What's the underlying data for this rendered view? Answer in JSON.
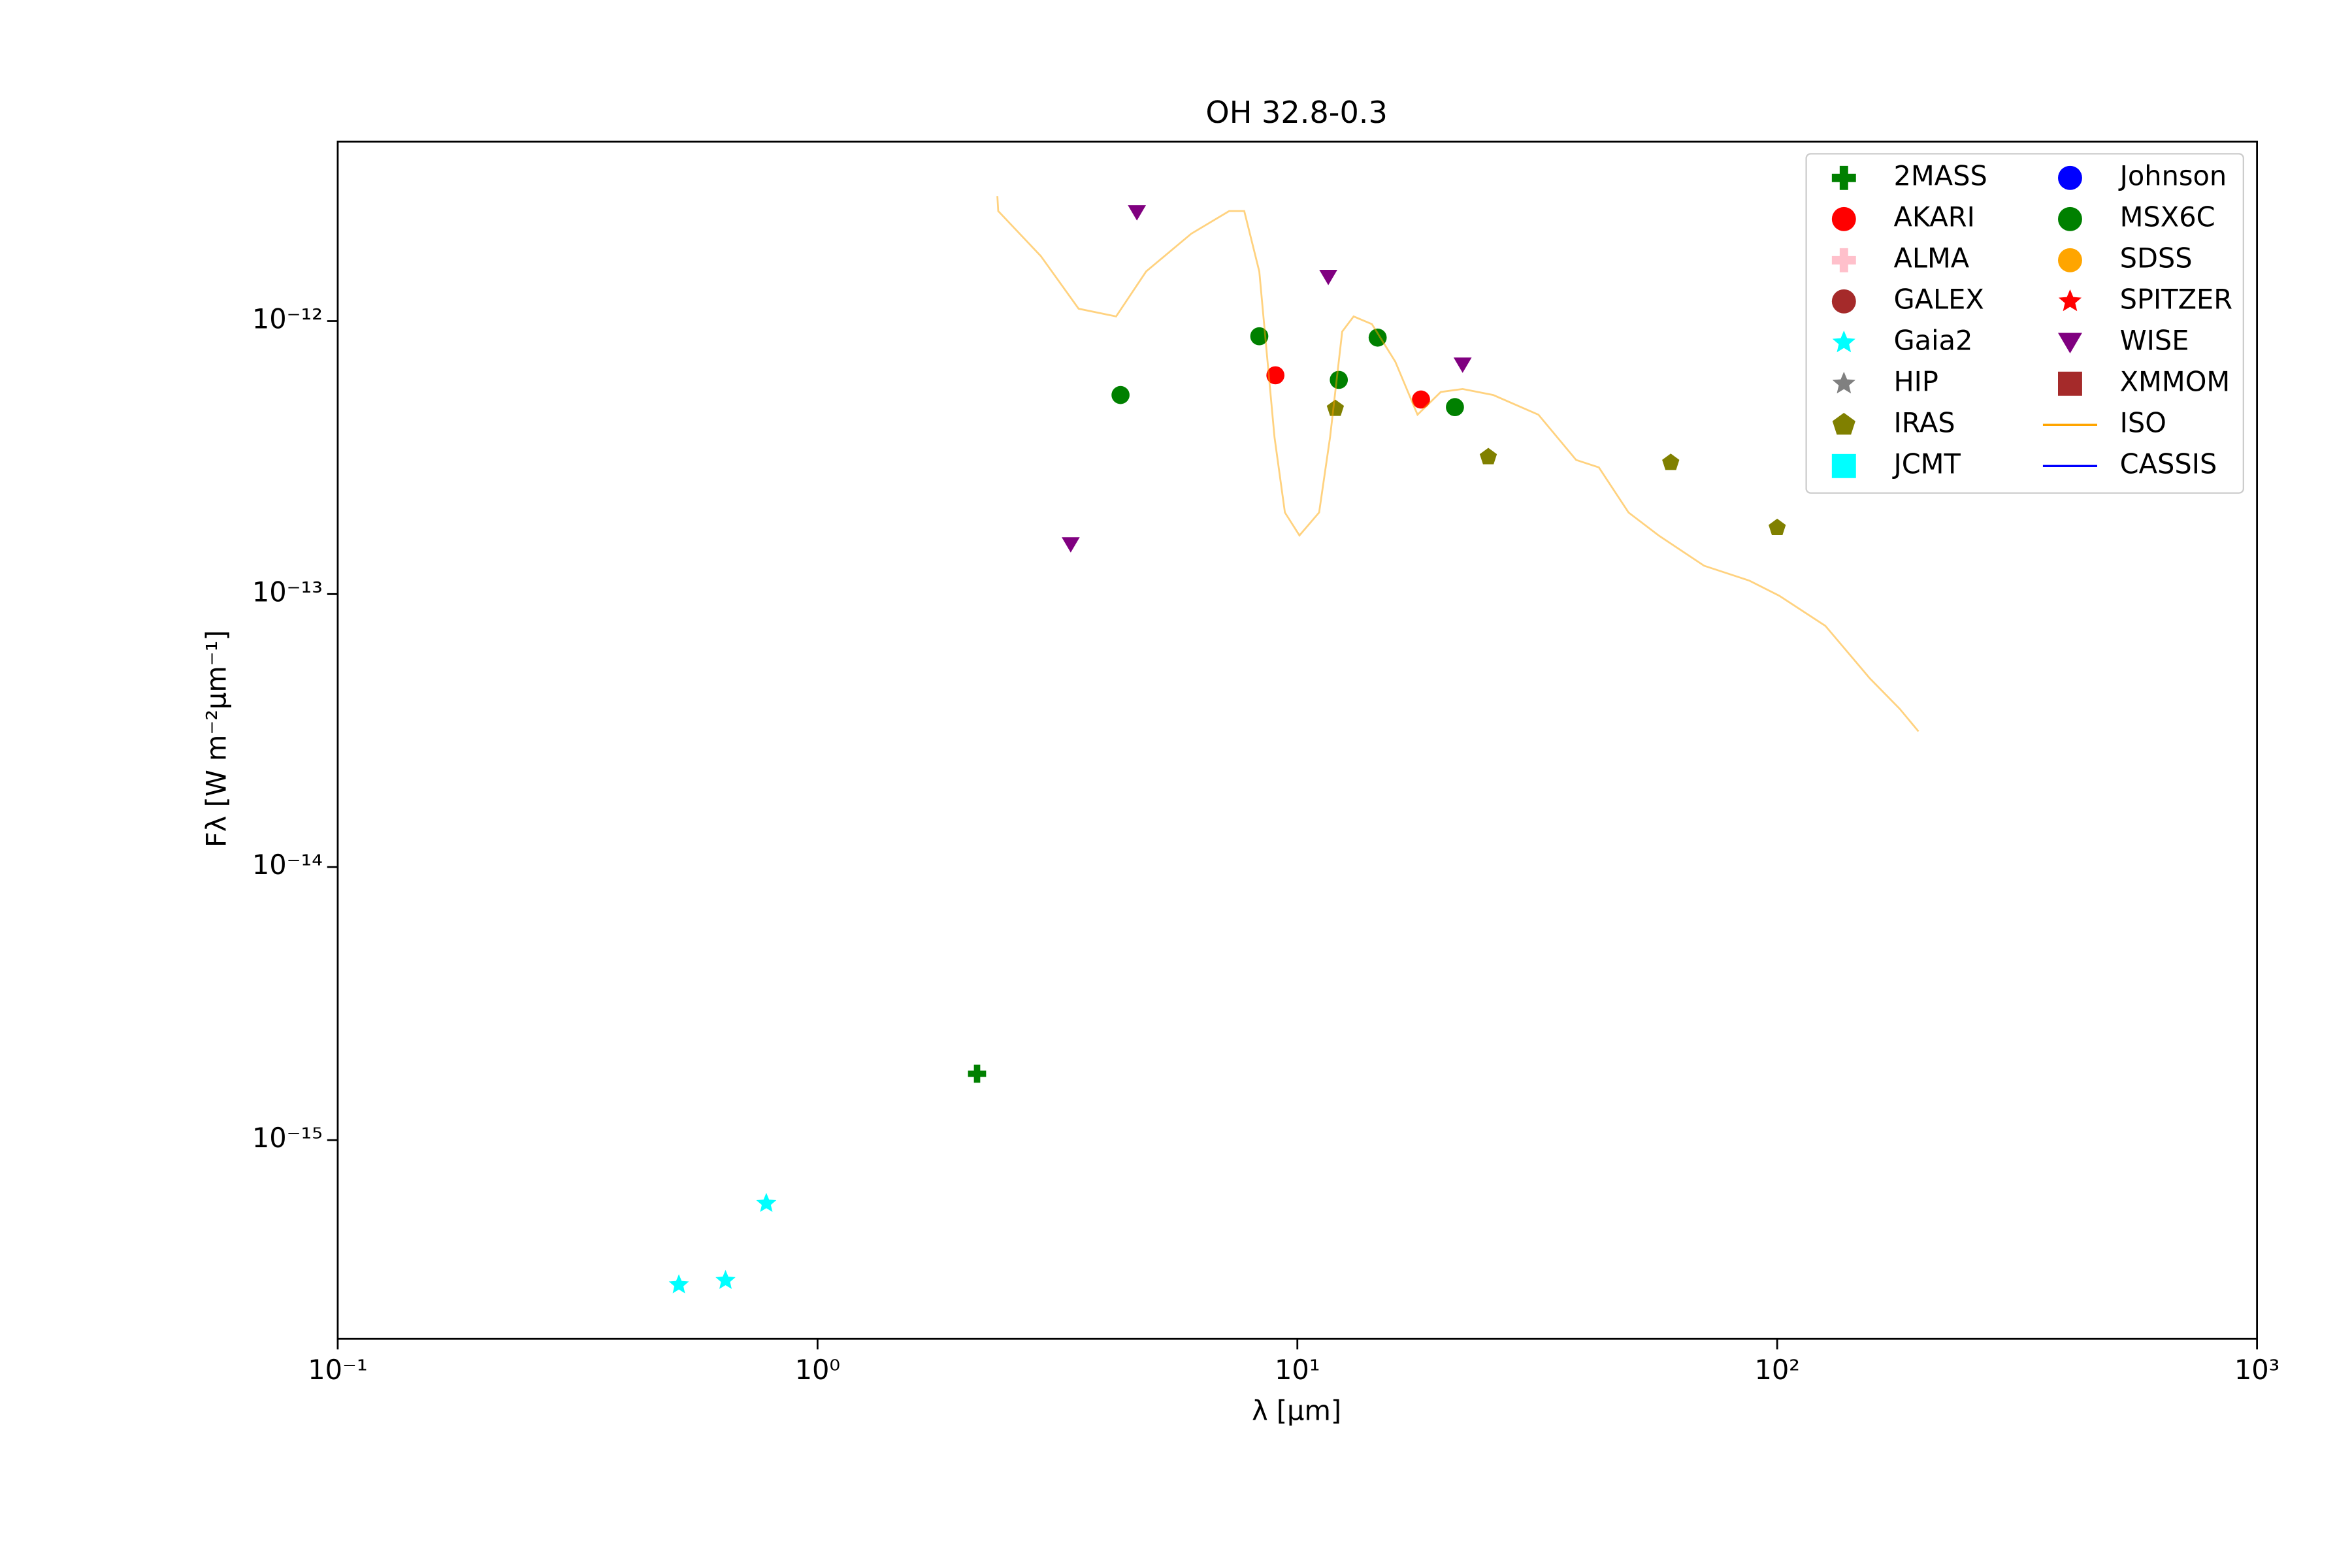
{
  "chart_data": {
    "type": "scatter",
    "title": "OH 32.8-0.3",
    "x_label": "λ [μm]",
    "y_label": "Fλ [W m⁻²μm⁻¹]",
    "xscale": "log",
    "yscale": "log",
    "xlim": [
      0.1,
      1000
    ],
    "ylim": [
      1.87e-16,
      4.54e-12
    ],
    "xticks": [
      {
        "value": 0.1,
        "label": "10⁻¹"
      },
      {
        "value": 1,
        "label": "10⁰"
      },
      {
        "value": 10,
        "label": "10¹"
      },
      {
        "value": 100,
        "label": "10²"
      },
      {
        "value": 1000,
        "label": "10³"
      }
    ],
    "yticks": [
      {
        "value": 1e-15,
        "label": "10⁻¹⁵"
      },
      {
        "value": 1e-14,
        "label": "10⁻¹⁴"
      },
      {
        "value": 1e-13,
        "label": "10⁻¹³"
      },
      {
        "value": 1e-12,
        "label": "10⁻¹²"
      }
    ],
    "legend": "upper right",
    "series": [
      {
        "name": "2MASS",
        "color": "#008000",
        "marker": "plus",
        "x": [
          2.15
        ],
        "values": [
          1.75e-15
        ]
      },
      {
        "name": "AKARI",
        "color": "#ff0000",
        "marker": "circle",
        "x": [
          9.0,
          18.1
        ],
        "values": [
          6.33e-13,
          5.16e-13
        ]
      },
      {
        "name": "ALMA",
        "color": "#ffc0cb",
        "marker": "plus",
        "x": [],
        "values": []
      },
      {
        "name": "GALEX",
        "color": "#a52a2a",
        "marker": "circle",
        "x": [],
        "values": []
      },
      {
        "name": "Gaia2",
        "color": "#00ffff",
        "marker": "star",
        "x": [
          0.514,
          0.643,
          0.782
        ],
        "values": [
          2.95e-16,
          3.06e-16,
          5.86e-16
        ]
      },
      {
        "name": "HIP",
        "color": "#808080",
        "marker": "star",
        "x": [],
        "values": []
      },
      {
        "name": "IRAS",
        "color": "#808000",
        "marker": "pentagon",
        "x": [
          12,
          25,
          60,
          100
        ],
        "values": [
          4.78e-13,
          3.18e-13,
          3.03e-13,
          1.75e-13
        ]
      },
      {
        "name": "JCMT",
        "color": "#00ffff",
        "marker": "square",
        "x": [],
        "values": []
      },
      {
        "name": "Johnson",
        "color": "#0000ff",
        "marker": "circle",
        "x": [],
        "values": []
      },
      {
        "name": "MSX6C",
        "color": "#008000",
        "marker": "circle",
        "x": [
          4.28,
          8.33,
          12.2,
          14.7,
          21.3
        ],
        "values": [
          5.36e-13,
          8.8e-13,
          6.09e-13,
          8.7e-13,
          4.84e-13
        ]
      },
      {
        "name": "SDSS",
        "color": "#ffa500",
        "marker": "circle",
        "x": [],
        "values": []
      },
      {
        "name": "SPITZER",
        "color": "#ff0000",
        "marker": "star",
        "x": [],
        "values": []
      },
      {
        "name": "WISE",
        "color": "#800080",
        "marker": "triangle",
        "x": [
          3.37,
          4.63,
          11.6,
          22.1
        ],
        "values": [
          1.52e-13,
          2.5e-12,
          1.45e-12,
          6.92e-13
        ]
      },
      {
        "name": "XMMOM",
        "color": "#a52a2a",
        "marker": "square",
        "x": [],
        "values": []
      },
      {
        "name": "ISO",
        "color": "#ffa500",
        "marker": "line",
        "x": [
          2.37,
          2.38,
          2.92,
          3.5,
          4.19,
          4.84,
          6.01,
          7.21,
          7.75,
          8.33,
          8.96,
          9.42,
          10.1,
          11.1,
          11.7,
          12.4,
          13.1,
          14.3,
          16.0,
          17.8,
          19.9,
          22.1,
          25.6,
          31.8,
          38.1,
          42.5,
          49.0,
          56.6,
          70.4,
          87.5,
          101,
          126,
          156,
          180,
          197
        ],
        "values": [
          2.87e-12,
          2.53e-12,
          1.73e-12,
          1.11e-12,
          1.04e-12,
          1.52e-12,
          2.09e-12,
          2.53e-12,
          2.53e-12,
          1.52e-12,
          3.76e-13,
          1.99e-13,
          1.64e-13,
          1.99e-13,
          3.76e-13,
          9.15e-13,
          1.04e-12,
          9.75e-13,
          7.1e-13,
          4.54e-13,
          5.5e-13,
          5.64e-13,
          5.36e-13,
          4.54e-13,
          3.1e-13,
          2.91e-13,
          1.99e-13,
          1.64e-13,
          1.27e-13,
          1.12e-13,
          9.86e-14,
          7.65e-14,
          4.91e-14,
          3.8e-14,
          3.14e-14
        ]
      },
      {
        "name": "CASSIS",
        "color": "#0000ff",
        "marker": "line",
        "x": [],
        "values": []
      }
    ]
  }
}
